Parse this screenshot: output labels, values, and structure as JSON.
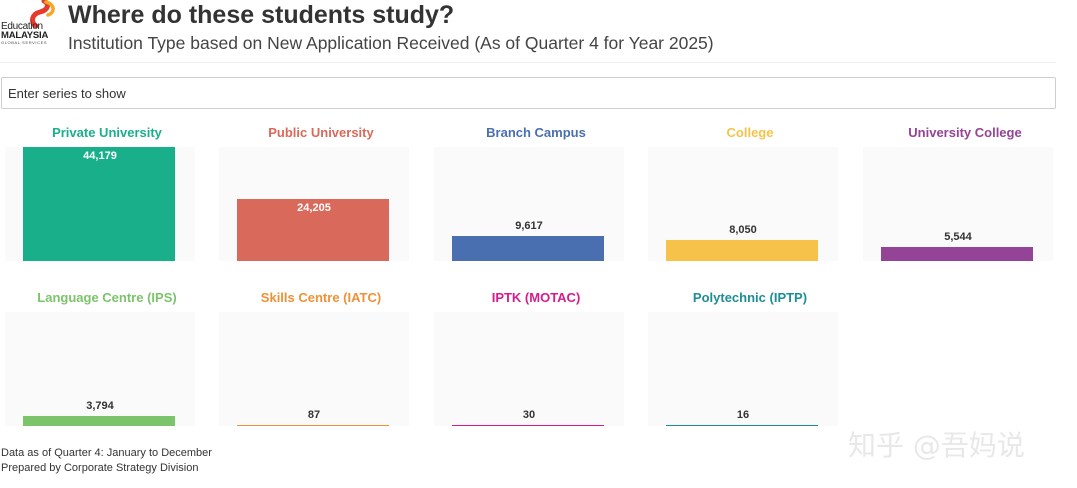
{
  "header": {
    "logo_line1": "Education",
    "logo_line2": "MALAYSIA",
    "logo_line3": "GLOBAL SERVICES",
    "title": "Where do these students study?",
    "subtitle": "Institution Type based on New Application Received (As of Quarter 4 for Year 2025)"
  },
  "search": {
    "placeholder": "Enter series to show"
  },
  "footer": {
    "line1": "Data as of Quarter 4: January to December",
    "line2": "Prepared by Corporate Strategy Division"
  },
  "watermark": "知乎 @吾妈说",
  "colors": {
    "logo_red": "#e63a2e",
    "logo_orange": "#f5a623"
  },
  "chart_data": {
    "type": "bar",
    "ylim": [
      0,
      44179
    ],
    "series": [
      {
        "name": "Private University",
        "value": 44179,
        "label": "44,179",
        "color": "#1aaf8b"
      },
      {
        "name": "Public University",
        "value": 24205,
        "label": "24,205",
        "color": "#d9695a"
      },
      {
        "name": "Branch Campus",
        "value": 9617,
        "label": "9,617",
        "color": "#4a6fb1"
      },
      {
        "name": "College",
        "value": 8050,
        "label": "8,050",
        "color": "#f6c24a"
      },
      {
        "name": "University College",
        "value": 5544,
        "label": "5,544",
        "color": "#944496"
      },
      {
        "name": "Language Centre (IPS)",
        "value": 3794,
        "label": "3,794",
        "color": "#7cc46b"
      },
      {
        "name": "Skills Centre (IATC)",
        "value": 87,
        "label": "87",
        "color": "#ef9135"
      },
      {
        "name": "IPTK (MOTAC)",
        "value": 30,
        "label": "30",
        "color": "#d81b8c"
      },
      {
        "name": "Polytechnic (IPTP)",
        "value": 16,
        "label": "16",
        "color": "#1d8e96"
      }
    ]
  }
}
